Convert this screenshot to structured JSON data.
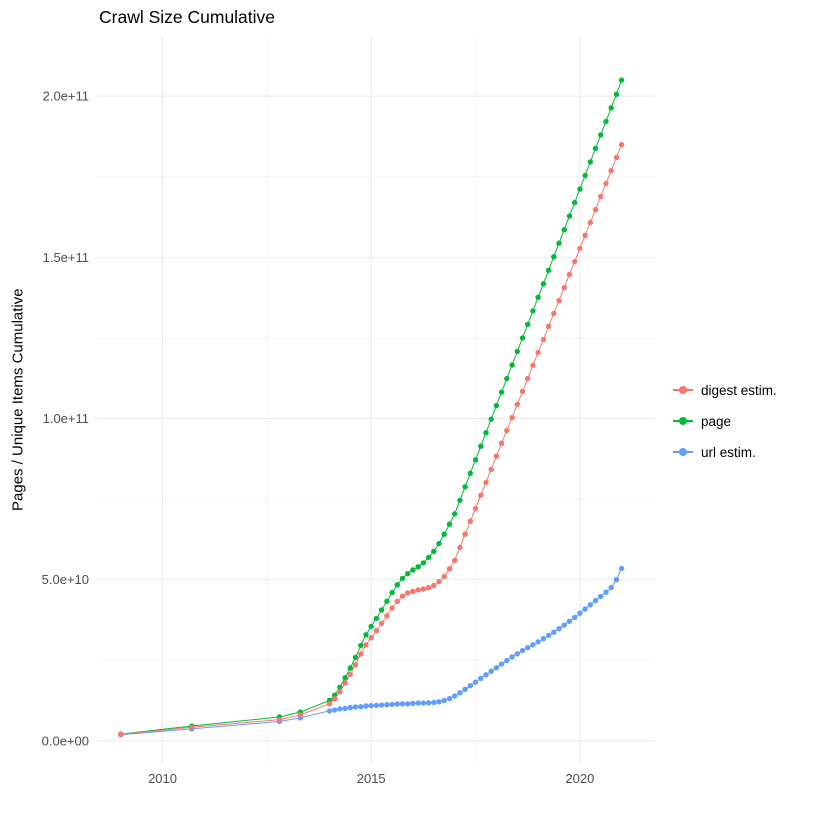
{
  "chart_data": {
    "type": "scatter-line",
    "title": "Crawl Size Cumulative",
    "xlabel": "",
    "ylabel": "Pages / Unique Items Cumulative",
    "xlim": [
      2008.43,
      2021.8
    ],
    "ylim": [
      -7500000000.0,
      219000000000.0
    ],
    "legend_position": "right",
    "grid": {
      "major_color": "#ebebeb",
      "minor_color": "#f2f2f2",
      "background": "#ffffff"
    },
    "x_ticks": [
      {
        "value": 2010,
        "label": "2010"
      },
      {
        "value": 2015,
        "label": "2015"
      },
      {
        "value": 2020,
        "label": "2020"
      }
    ],
    "y_ticks": [
      {
        "value": 0,
        "label": "0.0e+00"
      },
      {
        "value": 50000000000.0,
        "label": "5.0e+10"
      },
      {
        "value": 100000000000.0,
        "label": "1.0e+11"
      },
      {
        "value": 150000000000.0,
        "label": "1.5e+11"
      },
      {
        "value": 200000000000.0,
        "label": "2.0e+11"
      }
    ],
    "x_minor": [
      2012.5,
      2017.5
    ],
    "y_minor": [
      25000000000.0,
      75000000000.0,
      125000000000.0,
      175000000000.0
    ],
    "draw_order": [
      2,
      1,
      0
    ],
    "series": [
      {
        "id": "digest-estim",
        "name": "digest estim.",
        "color": "#F8766D",
        "points": [
          [
            2009.0,
            2000000000.0
          ],
          [
            2010.7,
            4200000000.0
          ],
          [
            2012.8,
            6600000000.0
          ],
          [
            2013.3,
            8000000000.0
          ],
          [
            2014.0,
            11500000000.0
          ],
          [
            2014.125,
            13000000000.0
          ],
          [
            2014.25,
            15200000000.0
          ],
          [
            2014.375,
            17900000000.0
          ],
          [
            2014.5,
            20600000000.0
          ],
          [
            2014.625,
            23600000000.0
          ],
          [
            2014.75,
            26900000000.0
          ],
          [
            2014.875,
            29800000000.0
          ],
          [
            2015.0,
            32000000000.0
          ],
          [
            2015.125,
            34200000000.0
          ],
          [
            2015.25,
            36400000000.0
          ],
          [
            2015.375,
            38800000000.0
          ],
          [
            2015.5,
            41200000000.0
          ],
          [
            2015.625,
            43300000000.0
          ],
          [
            2015.75,
            44900000000.0
          ],
          [
            2015.875,
            45900000000.0
          ],
          [
            2016.0,
            46400000000.0
          ],
          [
            2016.125,
            46800000000.0
          ],
          [
            2016.25,
            47100000000.0
          ],
          [
            2016.375,
            47500000000.0
          ],
          [
            2016.5,
            48200000000.0
          ],
          [
            2016.625,
            49400000000.0
          ],
          [
            2016.75,
            51000000000.0
          ],
          [
            2016.875,
            53400000000.0
          ],
          [
            2017.0,
            56000000000.0
          ],
          [
            2017.125,
            60000000000.0
          ],
          [
            2017.25,
            64100000000.0
          ],
          [
            2017.375,
            68100000000.0
          ],
          [
            2017.5,
            72100000000.0
          ],
          [
            2017.625,
            76200000000.0
          ],
          [
            2017.75,
            80200000000.0
          ],
          [
            2017.875,
            84200000000.0
          ],
          [
            2018.0,
            88300000000.0
          ],
          [
            2018.125,
            92300000000.0
          ],
          [
            2018.25,
            96300000000.0
          ],
          [
            2018.375,
            100300000000.0
          ],
          [
            2018.5,
            104400000000.0
          ],
          [
            2018.625,
            108400000000.0
          ],
          [
            2018.75,
            112400000000.0
          ],
          [
            2018.875,
            116500000000.0
          ],
          [
            2019.0,
            120500000000.0
          ],
          [
            2019.125,
            124500000000.0
          ],
          [
            2019.25,
            128600000000.0
          ],
          [
            2019.375,
            132600000000.0
          ],
          [
            2019.5,
            136600000000.0
          ],
          [
            2019.625,
            140600000000.0
          ],
          [
            2019.75,
            144700000000.0
          ],
          [
            2019.875,
            148700000000.0
          ],
          [
            2020.0,
            152800000000.0
          ],
          [
            2020.125,
            156800000000.0
          ],
          [
            2020.25,
            160800000000.0
          ],
          [
            2020.375,
            164800000000.0
          ],
          [
            2020.5,
            168900000000.0
          ],
          [
            2020.625,
            172900000000.0
          ],
          [
            2020.75,
            176900000000.0
          ],
          [
            2020.875,
            181000000000.0
          ],
          [
            2021.0,
            185000000000.0
          ]
        ]
      },
      {
        "id": "page",
        "name": "page",
        "color": "#00BA38",
        "points": [
          [
            2009.0,
            2100000000.0
          ],
          [
            2010.7,
            4600000000.0
          ],
          [
            2012.8,
            7400000000.0
          ],
          [
            2013.3,
            8900000000.0
          ],
          [
            2014.0,
            12500000000.0
          ],
          [
            2014.125,
            14200000000.0
          ],
          [
            2014.25,
            16600000000.0
          ],
          [
            2014.375,
            19600000000.0
          ],
          [
            2014.5,
            22600000000.0
          ],
          [
            2014.625,
            25900000000.0
          ],
          [
            2014.75,
            29600000000.0
          ],
          [
            2014.875,
            32900000000.0
          ],
          [
            2015.0,
            35500000000.0
          ],
          [
            2015.125,
            38000000000.0
          ],
          [
            2015.25,
            40600000000.0
          ],
          [
            2015.375,
            43300000000.0
          ],
          [
            2015.5,
            46000000000.0
          ],
          [
            2015.625,
            48400000000.0
          ],
          [
            2015.75,
            50400000000.0
          ],
          [
            2015.875,
            51900000000.0
          ],
          [
            2016.0,
            53000000000.0
          ],
          [
            2016.125,
            54000000000.0
          ],
          [
            2016.25,
            55200000000.0
          ],
          [
            2016.375,
            56900000000.0
          ],
          [
            2016.5,
            58800000000.0
          ],
          [
            2016.625,
            61200000000.0
          ],
          [
            2016.75,
            64100000000.0
          ],
          [
            2016.875,
            67200000000.0
          ],
          [
            2017.0,
            70400000000.0
          ],
          [
            2017.125,
            74600000000.0
          ],
          [
            2017.25,
            78800000000.0
          ],
          [
            2017.375,
            83000000000.0
          ],
          [
            2017.5,
            87200000000.0
          ],
          [
            2017.625,
            91400000000.0
          ],
          [
            2017.75,
            95600000000.0
          ],
          [
            2017.875,
            99800000000.0
          ],
          [
            2018.0,
            104000000000.0
          ],
          [
            2018.125,
            108200000000.0
          ],
          [
            2018.25,
            112400000000.0
          ],
          [
            2018.375,
            116600000000.0
          ],
          [
            2018.5,
            120800000000.0
          ],
          [
            2018.625,
            125000000000.0
          ],
          [
            2018.75,
            129200000000.0
          ],
          [
            2018.875,
            133400000000.0
          ],
          [
            2019.0,
            137600000000.0
          ],
          [
            2019.125,
            141800000000.0
          ],
          [
            2019.25,
            146000000000.0
          ],
          [
            2019.375,
            150200000000.0
          ],
          [
            2019.5,
            154400000000.0
          ],
          [
            2019.625,
            158600000000.0
          ],
          [
            2019.75,
            162800000000.0
          ],
          [
            2019.875,
            167000000000.0
          ],
          [
            2020.0,
            171200000000.0
          ],
          [
            2020.125,
            175400000000.0
          ],
          [
            2020.25,
            179600000000.0
          ],
          [
            2020.375,
            183800000000.0
          ],
          [
            2020.5,
            188000000000.0
          ],
          [
            2020.625,
            192200000000.0
          ],
          [
            2020.75,
            196400000000.0
          ],
          [
            2020.875,
            200600000000.0
          ],
          [
            2021.0,
            205000000000.0
          ]
        ]
      },
      {
        "id": "url-estim",
        "name": "url estim.",
        "color": "#619CFF",
        "points": [
          [
            2009.0,
            1900000000.0
          ],
          [
            2010.7,
            3700000000.0
          ],
          [
            2012.8,
            6000000000.0
          ],
          [
            2013.3,
            7100000000.0
          ],
          [
            2014.0,
            9300000000.0
          ],
          [
            2014.125,
            9600000000.0
          ],
          [
            2014.25,
            9900000000.0
          ],
          [
            2014.375,
            10100000000.0
          ],
          [
            2014.5,
            10300000000.0
          ],
          [
            2014.625,
            10500000000.0
          ],
          [
            2014.75,
            10600000000.0
          ],
          [
            2014.875,
            10800000000.0
          ],
          [
            2015.0,
            10900000000.0
          ],
          [
            2015.125,
            11000000000.0
          ],
          [
            2015.25,
            11100000000.0
          ],
          [
            2015.375,
            11200000000.0
          ],
          [
            2015.5,
            11300000000.0
          ],
          [
            2015.625,
            11400000000.0
          ],
          [
            2015.75,
            11500000000.0
          ],
          [
            2015.875,
            11500000000.0
          ],
          [
            2016.0,
            11600000000.0
          ],
          [
            2016.125,
            11700000000.0
          ],
          [
            2016.25,
            11700000000.0
          ],
          [
            2016.375,
            11800000000.0
          ],
          [
            2016.5,
            11900000000.0
          ],
          [
            2016.625,
            12100000000.0
          ],
          [
            2016.75,
            12500000000.0
          ],
          [
            2016.875,
            13100000000.0
          ],
          [
            2017.0,
            13900000000.0
          ],
          [
            2017.125,
            14900000000.0
          ],
          [
            2017.25,
            16000000000.0
          ],
          [
            2017.375,
            17100000000.0
          ],
          [
            2017.5,
            18200000000.0
          ],
          [
            2017.625,
            19400000000.0
          ],
          [
            2017.75,
            20500000000.0
          ],
          [
            2017.875,
            21600000000.0
          ],
          [
            2018.0,
            22700000000.0
          ],
          [
            2018.125,
            23800000000.0
          ],
          [
            2018.25,
            24900000000.0
          ],
          [
            2018.375,
            26000000000.0
          ],
          [
            2018.5,
            27000000000.0
          ],
          [
            2018.625,
            28000000000.0
          ],
          [
            2018.75,
            28900000000.0
          ],
          [
            2018.875,
            29800000000.0
          ],
          [
            2019.0,
            30700000000.0
          ],
          [
            2019.125,
            31700000000.0
          ],
          [
            2019.25,
            32700000000.0
          ],
          [
            2019.375,
            33700000000.0
          ],
          [
            2019.5,
            34800000000.0
          ],
          [
            2019.625,
            35900000000.0
          ],
          [
            2019.75,
            37100000000.0
          ],
          [
            2019.875,
            38300000000.0
          ],
          [
            2020.0,
            39600000000.0
          ],
          [
            2020.125,
            40900000000.0
          ],
          [
            2020.25,
            42200000000.0
          ],
          [
            2020.375,
            43500000000.0
          ],
          [
            2020.5,
            44800000000.0
          ],
          [
            2020.625,
            46100000000.0
          ],
          [
            2020.75,
            47500000000.0
          ],
          [
            2020.875,
            50000000000.0
          ],
          [
            2021.0,
            53500000000.0
          ]
        ]
      }
    ]
  }
}
